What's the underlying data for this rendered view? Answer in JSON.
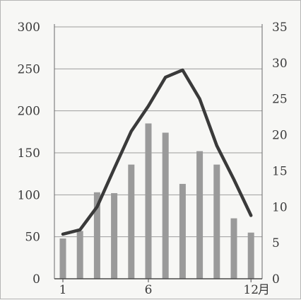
{
  "chart_data": {
    "type": "bar+line",
    "title": "",
    "x_tick_labels": [
      {
        "month": 1,
        "label": "1"
      },
      {
        "month": 6,
        "label": "6"
      },
      {
        "month": 12,
        "label": "12"
      }
    ],
    "x_unit": "月",
    "categories": [
      1,
      2,
      3,
      4,
      5,
      6,
      7,
      8,
      9,
      10,
      11,
      12
    ],
    "y_left": {
      "range": [
        0,
        300
      ],
      "ticks": [
        "0",
        "50",
        "100",
        "150",
        "200",
        "250",
        "300"
      ],
      "label": ""
    },
    "y_right": {
      "range": [
        0,
        35
      ],
      "ticks": [
        "0",
        "5",
        "10",
        "15",
        "20",
        "25",
        "30",
        "35"
      ],
      "label": ""
    },
    "grid": true,
    "series": [
      {
        "kind": "bar",
        "axis": "left",
        "color": "#9a9a9a",
        "values": [
          48,
          57,
          103,
          102,
          136,
          185,
          174,
          113,
          152,
          136,
          72,
          55
        ]
      },
      {
        "kind": "line",
        "axis": "right",
        "color": "#3a3a3a",
        "values": [
          6.2,
          6.8,
          10.0,
          15.3,
          20.5,
          24.0,
          28.0,
          29.0,
          25.0,
          18.5,
          13.8,
          8.8
        ]
      }
    ]
  }
}
